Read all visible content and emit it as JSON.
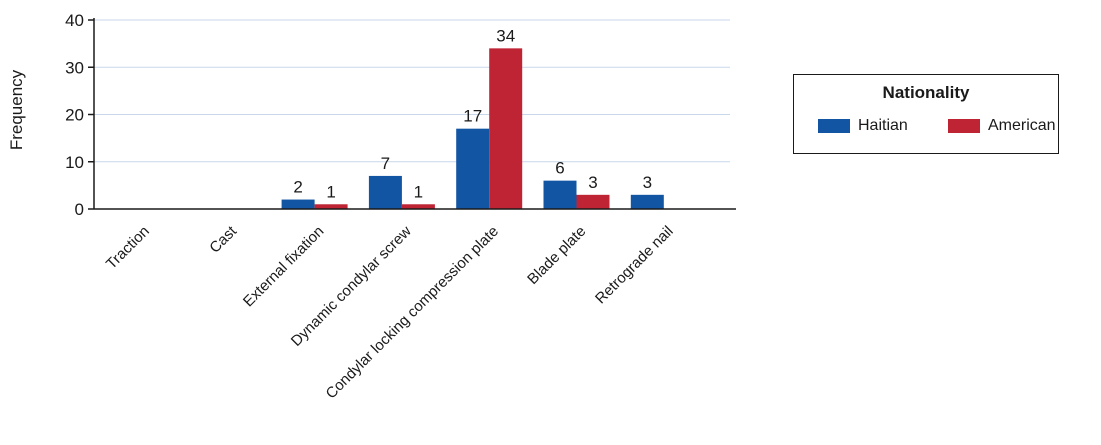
{
  "colors": {
    "haitian": "#1155a3",
    "american": "#bf2435",
    "grid": "#c9d7ea",
    "axis": "#1a1a1a"
  },
  "legend": {
    "title": "Nationality",
    "items": [
      {
        "label": "Haitian",
        "color": "#1155a3"
      },
      {
        "label": "American",
        "color": "#bf2435"
      }
    ]
  },
  "chart_data": {
    "type": "bar",
    "ylabel": "Frequency",
    "xlabel": "",
    "ylim": [
      0,
      40
    ],
    "yticks": [
      0,
      10,
      20,
      30,
      40
    ],
    "grid": true,
    "legend_position": "right",
    "categories": [
      "Traction",
      "Cast",
      "External fixation",
      "Dynamic condylar screw",
      "Condylar locking compression plate",
      "Blade plate",
      "Retrograde nail"
    ],
    "series": [
      {
        "name": "Haitian",
        "values": [
          0,
          0,
          2,
          7,
          17,
          6,
          3
        ],
        "labels": [
          "",
          "",
          "2",
          "7",
          "17",
          "6",
          "3"
        ]
      },
      {
        "name": "American",
        "values": [
          0,
          0,
          1,
          1,
          34,
          3,
          0
        ],
        "labels": [
          "",
          "",
          "1",
          "1",
          "34",
          "3",
          ""
        ]
      }
    ]
  }
}
